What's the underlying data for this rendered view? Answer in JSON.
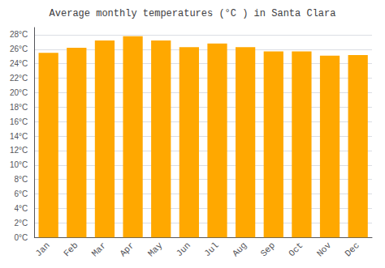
{
  "chart_data": {
    "type": "bar",
    "title": "Average monthly temperatures (°C ) in Santa Clara",
    "categories": [
      "Jan",
      "Feb",
      "Mar",
      "Apr",
      "May",
      "Jun",
      "Jul",
      "Aug",
      "Sep",
      "Oct",
      "Nov",
      "Dec"
    ],
    "values": [
      25.5,
      26.2,
      27.2,
      27.8,
      27.2,
      26.3,
      26.8,
      26.3,
      25.7,
      25.7,
      25.1,
      25.2
    ],
    "color": "#FFA800",
    "ylim": [
      0,
      29
    ],
    "yticks": [
      {
        "value": 0,
        "label": "0°C"
      },
      {
        "value": 2,
        "label": "2°C"
      },
      {
        "value": 4,
        "label": "4°C"
      },
      {
        "value": 6,
        "label": "6°C"
      },
      {
        "value": 8,
        "label": "8°C"
      },
      {
        "value": 10,
        "label": "10°C"
      },
      {
        "value": 12,
        "label": "12°C"
      },
      {
        "value": 14,
        "label": "14°C"
      },
      {
        "value": 16,
        "label": "16°C"
      },
      {
        "value": 18,
        "label": "18°C"
      },
      {
        "value": 20,
        "label": "20°C"
      },
      {
        "value": 22,
        "label": "22°C"
      },
      {
        "value": 24,
        "label": "24°C"
      },
      {
        "value": 26,
        "label": "26°C"
      },
      {
        "value": 28,
        "label": "28°C"
      }
    ],
    "grid": true
  }
}
